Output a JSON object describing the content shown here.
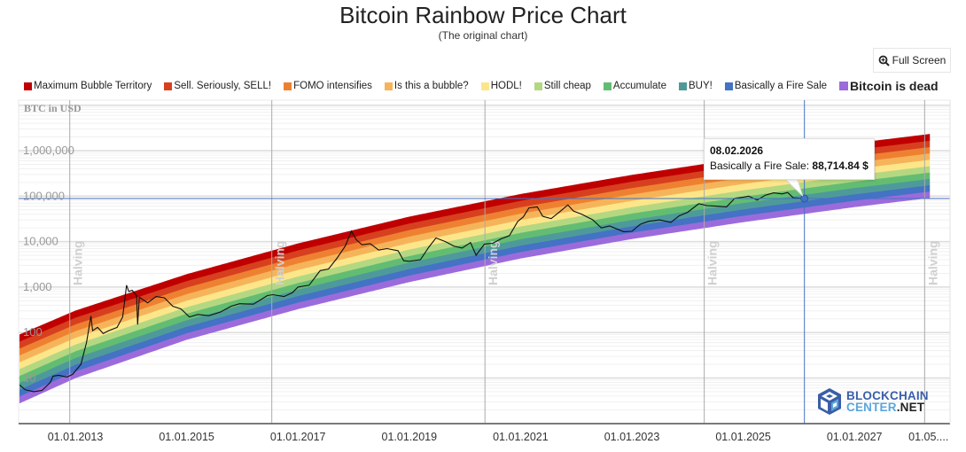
{
  "header": {
    "title": "Bitcoin Rainbow Price Chart",
    "subtitle": "(The original chart)",
    "full_screen_label": "Full Screen",
    "full_screen_icon": "zoom-in-icon"
  },
  "legend": [
    {
      "label": "Maximum Bubble Territory",
      "color": "#c00000",
      "bold": false
    },
    {
      "label": "Sell. Seriously, SELL!",
      "color": "#d6401f",
      "bold": false
    },
    {
      "label": "FOMO intensifies",
      "color": "#ee8131",
      "bold": false
    },
    {
      "label": "Is this a bubble?",
      "color": "#f6b45a",
      "bold": false
    },
    {
      "label": "HODL!",
      "color": "#fde68a",
      "bold": false
    },
    {
      "label": "Still cheap",
      "color": "#b4d881",
      "bold": false
    },
    {
      "label": "Accumulate",
      "color": "#62bd72",
      "bold": false
    },
    {
      "label": "BUY!",
      "color": "#4e9a9a",
      "bold": false
    },
    {
      "label": "Basically a Fire Sale",
      "color": "#4472c4",
      "bold": false
    },
    {
      "label": "Bitcoin is dead",
      "color": "#9b6bdc",
      "bold": true
    }
  ],
  "tooltip": {
    "date": "08.02.2026",
    "series": "Basically a Fire Sale",
    "separator": ": ",
    "value": "88,714.84 $"
  },
  "logo": {
    "line1": "BLOCKCHAIN",
    "line2a": "CENTER",
    "line2b": ".NET"
  },
  "chart_data": {
    "type": "area",
    "title": "Bitcoin Rainbow Price Chart",
    "subtitle": "(The original chart)",
    "ylabel": "BTC in USD",
    "yscale": "log",
    "ylim": [
      1,
      10000000
    ],
    "yticks": [
      {
        "value": 10,
        "label": "10"
      },
      {
        "value": 100,
        "label": "100"
      },
      {
        "value": 1000,
        "label": "1,000"
      },
      {
        "value": 10000,
        "label": "10,000"
      },
      {
        "value": 100000,
        "label": "100,000"
      },
      {
        "value": 1000000,
        "label": "1,000,000"
      }
    ],
    "xrange_years": [
      2012.0,
      2028.35
    ],
    "xticks": [
      {
        "year": 2013.0,
        "label": "01.01.2013"
      },
      {
        "year": 2015.0,
        "label": "01.01.2015"
      },
      {
        "year": 2017.0,
        "label": "01.01.2017"
      },
      {
        "year": 2019.0,
        "label": "01.01.2019"
      },
      {
        "year": 2021.0,
        "label": "01.01.2021"
      },
      {
        "year": 2023.0,
        "label": "01.01.2023"
      },
      {
        "year": 2025.0,
        "label": "01.01.2025"
      },
      {
        "year": 2027.0,
        "label": "01.01.2027"
      },
      {
        "year": 2028.33,
        "label": "01.05...."
      }
    ],
    "halvings": [
      {
        "year": 2012.9,
        "label": "Halving"
      },
      {
        "year": 2016.53,
        "label": "Halving"
      },
      {
        "year": 2020.36,
        "label": "Halving"
      },
      {
        "year": 2024.3,
        "label": "Halving"
      },
      {
        "year": 2028.26,
        "label": "Halving"
      }
    ],
    "bands": {
      "names": [
        "Bitcoin is dead",
        "Basically a Fire Sale",
        "BUY!",
        "Accumulate",
        "Still cheap",
        "HODL!",
        "Is this a bubble?",
        "FOMO intensifies",
        "Sell. Seriously, SELL!",
        "Maximum Bubble Territory"
      ],
      "colors": [
        "#9b6bdc",
        "#4472c4",
        "#4e9a9a",
        "#62bd72",
        "#b4d881",
        "#fde68a",
        "#f6b45a",
        "#ee8131",
        "#d6401f",
        "#c00000"
      ],
      "lower_edge": [
        {
          "year": 2012.0,
          "value": 2.8
        },
        {
          "year": 2013.0,
          "value": 10
        },
        {
          "year": 2015.0,
          "value": 70
        },
        {
          "year": 2017.0,
          "value": 330
        },
        {
          "year": 2019.0,
          "value": 1300
        },
        {
          "year": 2021.0,
          "value": 4300
        },
        {
          "year": 2023.0,
          "value": 11500
        },
        {
          "year": 2025.0,
          "value": 27000
        },
        {
          "year": 2027.0,
          "value": 58000
        },
        {
          "year": 2028.35,
          "value": 92000
        }
      ],
      "upper_edge": [
        {
          "year": 2012.0,
          "value": 90
        },
        {
          "year": 2013.0,
          "value": 300
        },
        {
          "year": 2015.0,
          "value": 1900
        },
        {
          "year": 2017.0,
          "value": 9000
        },
        {
          "year": 2019.0,
          "value": 35000
        },
        {
          "year": 2021.0,
          "value": 110000
        },
        {
          "year": 2023.0,
          "value": 290000
        },
        {
          "year": 2025.0,
          "value": 680000
        },
        {
          "year": 2027.0,
          "value": 1450000
        },
        {
          "year": 2028.35,
          "value": 2300000
        }
      ]
    },
    "series": [
      {
        "name": "BTC Price",
        "color": "#111111",
        "points": [
          [
            2012.0,
            7
          ],
          [
            2012.1,
            5.5
          ],
          [
            2012.25,
            5
          ],
          [
            2012.4,
            5.3
          ],
          [
            2012.55,
            8
          ],
          [
            2012.6,
            11
          ],
          [
            2012.7,
            11.5
          ],
          [
            2012.85,
            10.5
          ],
          [
            2012.95,
            12
          ],
          [
            2013.1,
            20
          ],
          [
            2013.2,
            60
          ],
          [
            2013.28,
            230
          ],
          [
            2013.31,
            110
          ],
          [
            2013.4,
            130
          ],
          [
            2013.5,
            95
          ],
          [
            2013.6,
            110
          ],
          [
            2013.75,
            130
          ],
          [
            2013.85,
            220
          ],
          [
            2013.92,
            1100
          ],
          [
            2013.96,
            800
          ],
          [
            2014.02,
            850
          ],
          [
            2014.1,
            650
          ],
          [
            2014.12,
            150
          ],
          [
            2014.15,
            600
          ],
          [
            2014.3,
            450
          ],
          [
            2014.45,
            620
          ],
          [
            2014.6,
            580
          ],
          [
            2014.75,
            380
          ],
          [
            2014.9,
            330
          ],
          [
            2015.05,
            220
          ],
          [
            2015.2,
            250
          ],
          [
            2015.4,
            235
          ],
          [
            2015.6,
            280
          ],
          [
            2015.8,
            380
          ],
          [
            2015.95,
            430
          ],
          [
            2016.2,
            420
          ],
          [
            2016.45,
            650
          ],
          [
            2016.55,
            680
          ],
          [
            2016.75,
            620
          ],
          [
            2016.9,
            750
          ],
          [
            2017.0,
            1000
          ],
          [
            2017.2,
            1100
          ],
          [
            2017.4,
            2300
          ],
          [
            2017.55,
            2500
          ],
          [
            2017.7,
            4300
          ],
          [
            2017.85,
            8000
          ],
          [
            2017.96,
            17000
          ],
          [
            2018.05,
            11000
          ],
          [
            2018.15,
            8500
          ],
          [
            2018.3,
            9000
          ],
          [
            2018.45,
            6500
          ],
          [
            2018.6,
            7000
          ],
          [
            2018.8,
            6300
          ],
          [
            2018.9,
            3800
          ],
          [
            2019.0,
            3700
          ],
          [
            2019.2,
            4000
          ],
          [
            2019.35,
            7500
          ],
          [
            2019.48,
            12000
          ],
          [
            2019.65,
            10000
          ],
          [
            2019.8,
            8000
          ],
          [
            2019.95,
            7200
          ],
          [
            2020.1,
            9500
          ],
          [
            2020.2,
            5000
          ],
          [
            2020.35,
            8800
          ],
          [
            2020.5,
            9200
          ],
          [
            2020.65,
            11500
          ],
          [
            2020.8,
            13500
          ],
          [
            2020.95,
            28000
          ],
          [
            2021.05,
            35000
          ],
          [
            2021.15,
            55000
          ],
          [
            2021.3,
            58000
          ],
          [
            2021.4,
            36000
          ],
          [
            2021.55,
            32000
          ],
          [
            2021.7,
            45000
          ],
          [
            2021.85,
            64000
          ],
          [
            2021.95,
            47000
          ],
          [
            2022.1,
            40000
          ],
          [
            2022.3,
            30000
          ],
          [
            2022.45,
            20000
          ],
          [
            2022.6,
            22000
          ],
          [
            2022.85,
            16500
          ],
          [
            2023.0,
            16800
          ],
          [
            2023.15,
            24000
          ],
          [
            2023.3,
            28000
          ],
          [
            2023.5,
            30000
          ],
          [
            2023.7,
            26500
          ],
          [
            2023.85,
            37000
          ],
          [
            2024.0,
            44000
          ],
          [
            2024.2,
            68000
          ],
          [
            2024.35,
            62000
          ],
          [
            2024.55,
            60000
          ],
          [
            2024.7,
            58000
          ],
          [
            2024.85,
            90000
          ],
          [
            2025.0,
            95000
          ],
          [
            2025.1,
            100000
          ],
          [
            2025.25,
            82000
          ],
          [
            2025.4,
            105000
          ],
          [
            2025.55,
            118000
          ],
          [
            2025.7,
            112000
          ],
          [
            2025.8,
            120000
          ],
          [
            2025.9,
            92000
          ],
          [
            2026.0,
            90000
          ],
          [
            2026.1,
            88714.84
          ]
        ]
      }
    ],
    "crosshair": {
      "year": 2026.1,
      "value": 88714.84
    },
    "legend_position": "top"
  }
}
